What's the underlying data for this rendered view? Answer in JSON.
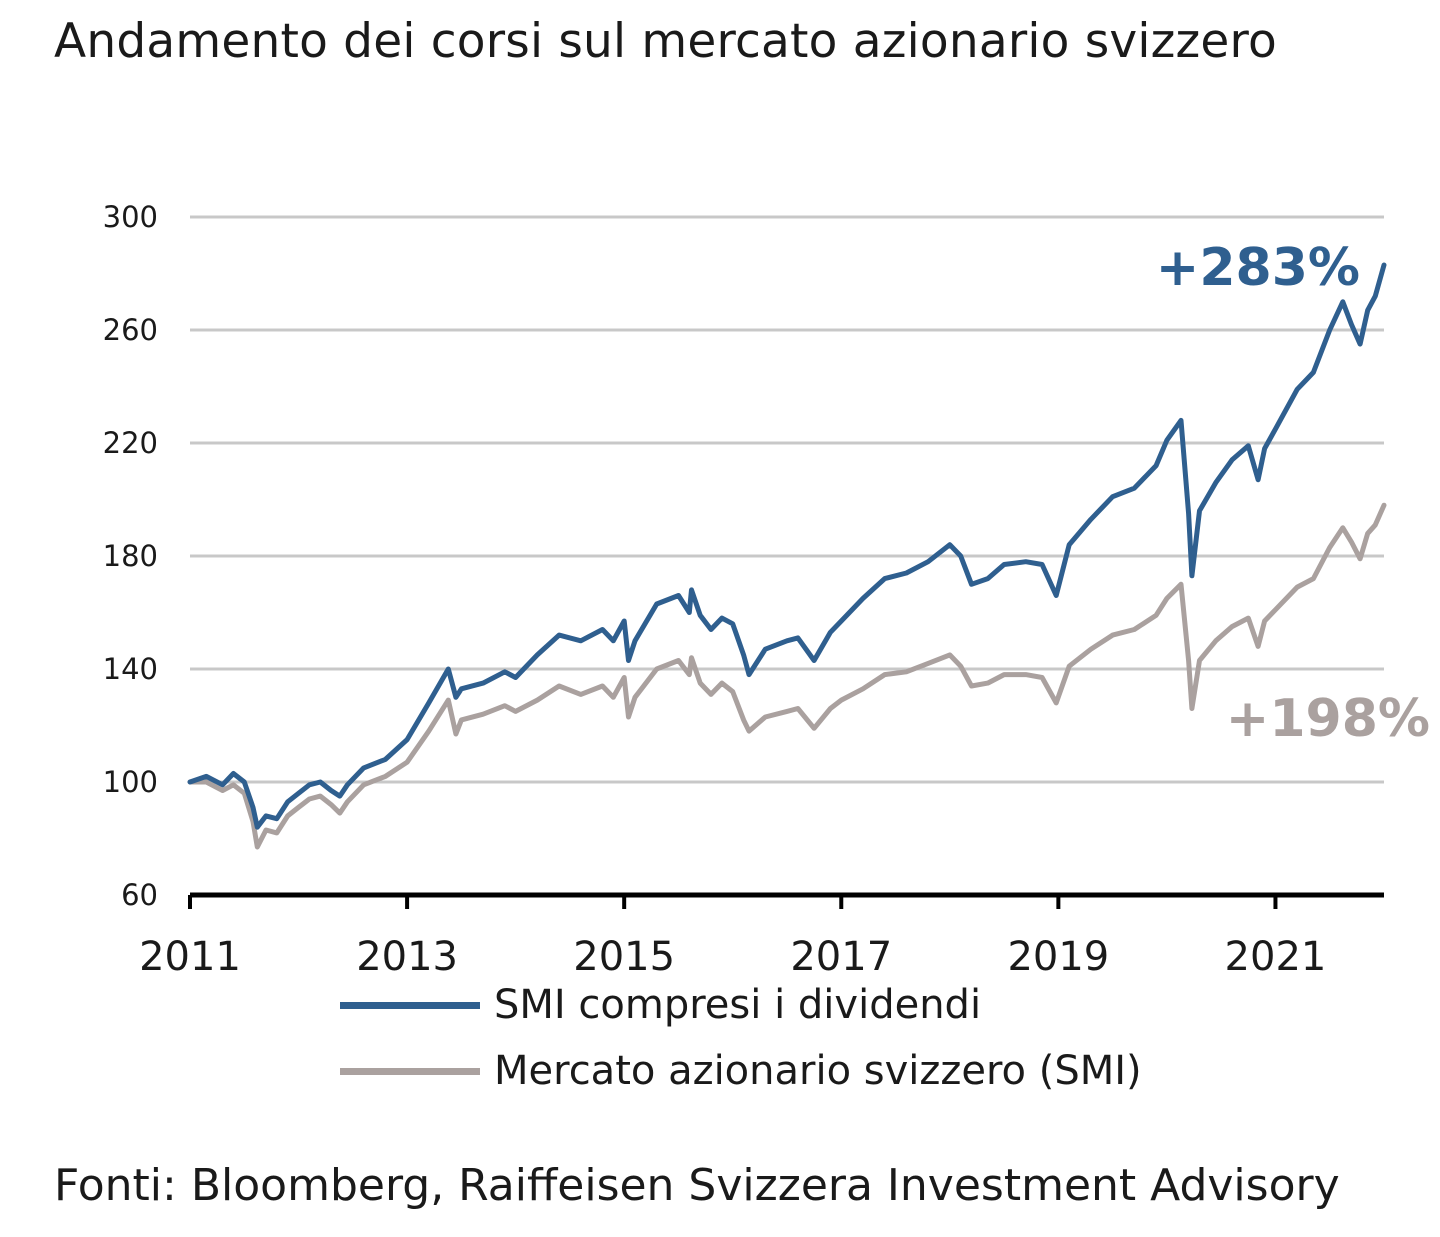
{
  "title": "Andamento dei corsi sul mercato azionario svizzero",
  "source": "Fonti: Bloomberg, Raiffeisen Svizzera Investment Advisory",
  "chart_data": {
    "type": "line",
    "xlim": [
      2011.0,
      2022.0
    ],
    "ylim": [
      60,
      300
    ],
    "yticks": [
      60,
      100,
      140,
      180,
      220,
      260,
      300
    ],
    "xticks": [
      2011,
      2013,
      2015,
      2017,
      2019,
      2021
    ],
    "grid": true,
    "series": [
      {
        "name": "SMI compresi i dividendi",
        "color": "#2f5f8f",
        "end_label": "+283%",
        "points": [
          [
            2011.0,
            100
          ],
          [
            2011.15,
            102
          ],
          [
            2011.3,
            99
          ],
          [
            2011.4,
            103
          ],
          [
            2011.5,
            100
          ],
          [
            2011.58,
            91
          ],
          [
            2011.62,
            84
          ],
          [
            2011.7,
            88
          ],
          [
            2011.8,
            87
          ],
          [
            2011.9,
            93
          ],
          [
            2012.0,
            96
          ],
          [
            2012.1,
            99
          ],
          [
            2012.2,
            100
          ],
          [
            2012.3,
            97
          ],
          [
            2012.38,
            95
          ],
          [
            2012.45,
            99
          ],
          [
            2012.6,
            105
          ],
          [
            2012.8,
            108
          ],
          [
            2013.0,
            115
          ],
          [
            2013.2,
            128
          ],
          [
            2013.38,
            140
          ],
          [
            2013.45,
            130
          ],
          [
            2013.5,
            133
          ],
          [
            2013.7,
            135
          ],
          [
            2013.9,
            139
          ],
          [
            2014.0,
            137
          ],
          [
            2014.2,
            145
          ],
          [
            2014.4,
            152
          ],
          [
            2014.6,
            150
          ],
          [
            2014.8,
            154
          ],
          [
            2014.9,
            150
          ],
          [
            2015.0,
            157
          ],
          [
            2015.04,
            143
          ],
          [
            2015.1,
            150
          ],
          [
            2015.3,
            163
          ],
          [
            2015.5,
            166
          ],
          [
            2015.6,
            160
          ],
          [
            2015.62,
            168
          ],
          [
            2015.7,
            159
          ],
          [
            2015.8,
            154
          ],
          [
            2015.9,
            158
          ],
          [
            2016.0,
            156
          ],
          [
            2016.1,
            145
          ],
          [
            2016.15,
            138
          ],
          [
            2016.3,
            147
          ],
          [
            2016.5,
            150
          ],
          [
            2016.6,
            151
          ],
          [
            2016.75,
            143
          ],
          [
            2016.9,
            153
          ],
          [
            2017.0,
            157
          ],
          [
            2017.2,
            165
          ],
          [
            2017.4,
            172
          ],
          [
            2017.6,
            174
          ],
          [
            2017.8,
            178
          ],
          [
            2018.0,
            184
          ],
          [
            2018.1,
            180
          ],
          [
            2018.2,
            170
          ],
          [
            2018.35,
            172
          ],
          [
            2018.5,
            177
          ],
          [
            2018.7,
            178
          ],
          [
            2018.85,
            177
          ],
          [
            2018.98,
            166
          ],
          [
            2019.1,
            184
          ],
          [
            2019.3,
            193
          ],
          [
            2019.5,
            201
          ],
          [
            2019.7,
            204
          ],
          [
            2019.9,
            212
          ],
          [
            2020.0,
            221
          ],
          [
            2020.13,
            228
          ],
          [
            2020.2,
            195
          ],
          [
            2020.23,
            173
          ],
          [
            2020.3,
            196
          ],
          [
            2020.45,
            206
          ],
          [
            2020.6,
            214
          ],
          [
            2020.75,
            219
          ],
          [
            2020.84,
            207
          ],
          [
            2020.9,
            218
          ],
          [
            2021.0,
            225
          ],
          [
            2021.2,
            239
          ],
          [
            2021.35,
            245
          ],
          [
            2021.5,
            260
          ],
          [
            2021.62,
            270
          ],
          [
            2021.7,
            262
          ],
          [
            2021.78,
            255
          ],
          [
            2021.85,
            267
          ],
          [
            2021.92,
            272
          ],
          [
            2022.0,
            283
          ]
        ]
      },
      {
        "name": "Mercato azionario svizzero (SMI)",
        "color": "#aaa19f",
        "end_label": "+198%",
        "points": [
          [
            2011.0,
            100
          ],
          [
            2011.15,
            100
          ],
          [
            2011.3,
            97
          ],
          [
            2011.4,
            99
          ],
          [
            2011.5,
            96
          ],
          [
            2011.58,
            86
          ],
          [
            2011.62,
            77
          ],
          [
            2011.7,
            83
          ],
          [
            2011.8,
            82
          ],
          [
            2011.9,
            88
          ],
          [
            2012.0,
            91
          ],
          [
            2012.1,
            94
          ],
          [
            2012.2,
            95
          ],
          [
            2012.3,
            92
          ],
          [
            2012.38,
            89
          ],
          [
            2012.45,
            93
          ],
          [
            2012.6,
            99
          ],
          [
            2012.8,
            102
          ],
          [
            2013.0,
            107
          ],
          [
            2013.2,
            118
          ],
          [
            2013.38,
            129
          ],
          [
            2013.45,
            117
          ],
          [
            2013.5,
            122
          ],
          [
            2013.7,
            124
          ],
          [
            2013.9,
            127
          ],
          [
            2014.0,
            125
          ],
          [
            2014.2,
            129
          ],
          [
            2014.4,
            134
          ],
          [
            2014.6,
            131
          ],
          [
            2014.8,
            134
          ],
          [
            2014.9,
            130
          ],
          [
            2015.0,
            137
          ],
          [
            2015.04,
            123
          ],
          [
            2015.1,
            130
          ],
          [
            2015.3,
            140
          ],
          [
            2015.5,
            143
          ],
          [
            2015.6,
            138
          ],
          [
            2015.62,
            144
          ],
          [
            2015.7,
            135
          ],
          [
            2015.8,
            131
          ],
          [
            2015.9,
            135
          ],
          [
            2016.0,
            132
          ],
          [
            2016.1,
            122
          ],
          [
            2016.15,
            118
          ],
          [
            2016.3,
            123
          ],
          [
            2016.5,
            125
          ],
          [
            2016.6,
            126
          ],
          [
            2016.75,
            119
          ],
          [
            2016.9,
            126
          ],
          [
            2017.0,
            129
          ],
          [
            2017.2,
            133
          ],
          [
            2017.4,
            138
          ],
          [
            2017.6,
            139
          ],
          [
            2017.8,
            142
          ],
          [
            2018.0,
            145
          ],
          [
            2018.1,
            141
          ],
          [
            2018.2,
            134
          ],
          [
            2018.35,
            135
          ],
          [
            2018.5,
            138
          ],
          [
            2018.7,
            138
          ],
          [
            2018.85,
            137
          ],
          [
            2018.98,
            128
          ],
          [
            2019.1,
            141
          ],
          [
            2019.3,
            147
          ],
          [
            2019.5,
            152
          ],
          [
            2019.7,
            154
          ],
          [
            2019.9,
            159
          ],
          [
            2020.0,
            165
          ],
          [
            2020.13,
            170
          ],
          [
            2020.2,
            143
          ],
          [
            2020.23,
            126
          ],
          [
            2020.3,
            143
          ],
          [
            2020.45,
            150
          ],
          [
            2020.6,
            155
          ],
          [
            2020.75,
            158
          ],
          [
            2020.84,
            148
          ],
          [
            2020.9,
            157
          ],
          [
            2021.0,
            161
          ],
          [
            2021.2,
            169
          ],
          [
            2021.35,
            172
          ],
          [
            2021.5,
            183
          ],
          [
            2021.62,
            190
          ],
          [
            2021.7,
            185
          ],
          [
            2021.78,
            179
          ],
          [
            2021.85,
            188
          ],
          [
            2021.92,
            191
          ],
          [
            2022.0,
            198
          ]
        ]
      }
    ]
  },
  "legend": [
    {
      "label": "SMI compresi i dividendi",
      "color": "#2f5f8f"
    },
    {
      "label": "Mercato azionario svizzero (SMI)",
      "color": "#aaa19f"
    }
  ]
}
